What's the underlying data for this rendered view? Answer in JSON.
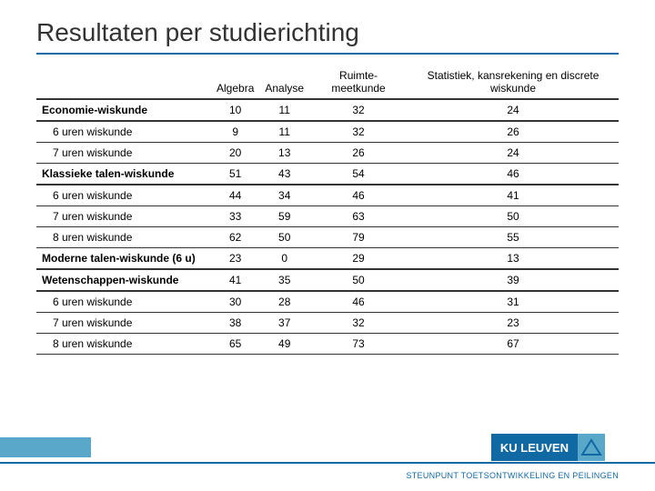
{
  "title": "Resultaten per studierichting",
  "table": {
    "columns": [
      "",
      "Algebra",
      "Analyse",
      "Ruimte-meetkunde",
      "Statistiek, kansrekening en discrete wiskunde"
    ],
    "rows": [
      {
        "kind": "section",
        "label": "Economie-wiskunde",
        "vals": [
          10,
          11,
          32,
          24
        ]
      },
      {
        "kind": "sub",
        "label": "6 uren wiskunde",
        "vals": [
          9,
          11,
          32,
          26
        ]
      },
      {
        "kind": "sub",
        "label": "7 uren wiskunde",
        "vals": [
          20,
          13,
          26,
          24
        ]
      },
      {
        "kind": "section",
        "label": "Klassieke talen-wiskunde",
        "vals": [
          51,
          43,
          54,
          46
        ]
      },
      {
        "kind": "sub",
        "label": "6 uren wiskunde",
        "vals": [
          44,
          34,
          46,
          41
        ]
      },
      {
        "kind": "sub",
        "label": "7 uren wiskunde",
        "vals": [
          33,
          59,
          63,
          50
        ]
      },
      {
        "kind": "sub",
        "label": "8 uren wiskunde",
        "vals": [
          62,
          50,
          79,
          55
        ]
      },
      {
        "kind": "section",
        "label": "Moderne talen-wiskunde (6 u)",
        "vals": [
          23,
          0,
          29,
          13
        ]
      },
      {
        "kind": "section",
        "label": "Wetenschappen-wiskunde",
        "vals": [
          41,
          35,
          50,
          39
        ]
      },
      {
        "kind": "sub",
        "label": "6 uren wiskunde",
        "vals": [
          30,
          28,
          46,
          31
        ]
      },
      {
        "kind": "sub",
        "label": "7 uren wiskunde",
        "vals": [
          38,
          37,
          32,
          23
        ]
      },
      {
        "kind": "sub",
        "label": "8 uren wiskunde",
        "vals": [
          65,
          49,
          73,
          67
        ]
      }
    ]
  },
  "logo_text": "KU LEUVEN",
  "footer": "STEUNPUNT TOETSONTWIKKELING EN PEILINGEN",
  "colors": {
    "brand": "#1169a4",
    "accent": "#5aa8c9"
  }
}
